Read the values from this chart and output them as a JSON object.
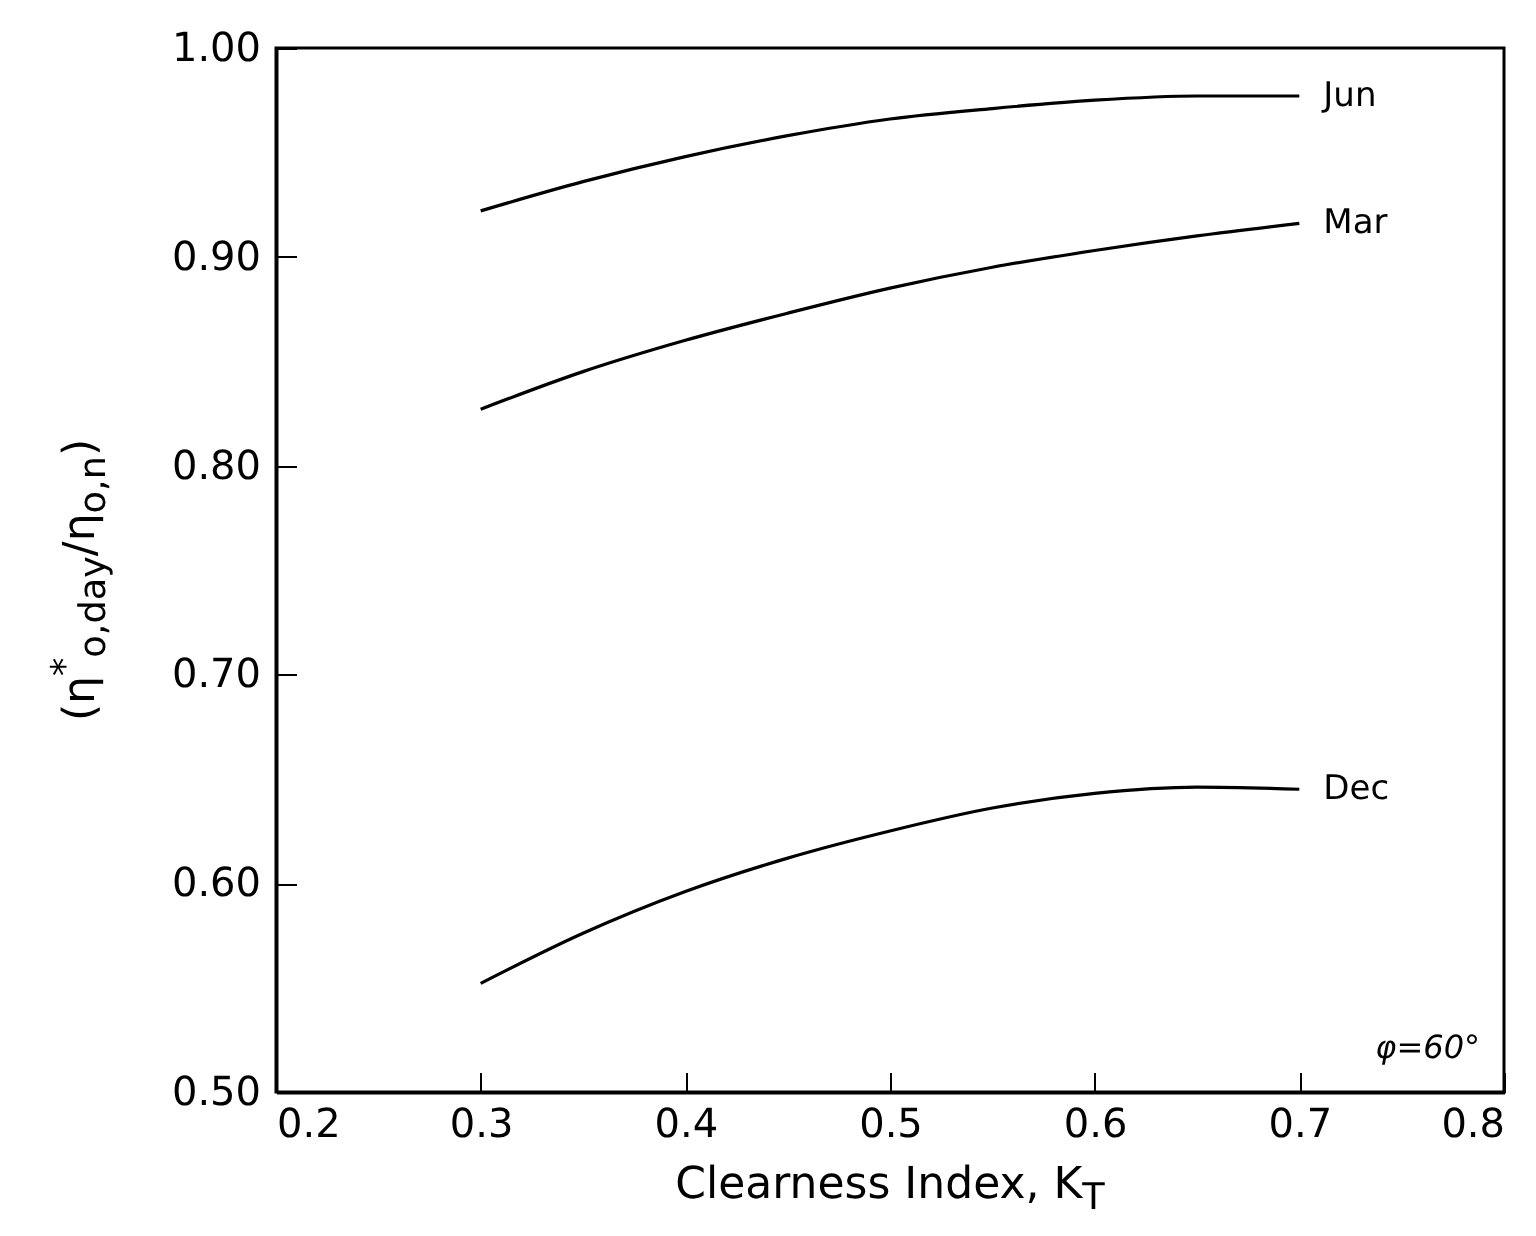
{
  "chart_data": {
    "type": "line",
    "xlabel": "Clearness Index, K$_{T}$",
    "ylabel": "(η$^{*}$$_{o,day}$/η$_{o,n}$)",
    "x": [
      0.3,
      0.35,
      0.4,
      0.45,
      0.5,
      0.55,
      0.6,
      0.65,
      0.7
    ],
    "series": [
      {
        "name": "Jun",
        "color": "#000000",
        "values": [
          0.922,
          0.936,
          0.948,
          0.958,
          0.966,
          0.971,
          0.975,
          0.977,
          0.977
        ]
      },
      {
        "name": "Mar",
        "color": "#000000",
        "values": [
          0.827,
          0.845,
          0.86,
          0.873,
          0.885,
          0.895,
          0.903,
          0.91,
          0.916
        ]
      },
      {
        "name": "Dec",
        "color": "#000000",
        "values": [
          0.552,
          0.576,
          0.596,
          0.612,
          0.625,
          0.636,
          0.643,
          0.646,
          0.645
        ]
      }
    ],
    "xlim": [
      0.2,
      0.8
    ],
    "xticks": [
      0.2,
      0.3,
      0.4,
      0.5,
      0.6,
      0.7,
      0.8
    ],
    "ylim": [
      0.5,
      1.0
    ],
    "yticks": [
      {
        "value": 0.5,
        "label": "0.50"
      },
      {
        "value": 0.6,
        "label": "0.60"
      },
      {
        "value": 0.7,
        "label": "0.70"
      },
      {
        "value": 0.8,
        "label": "0.80"
      },
      {
        "value": 0.9,
        "label": "0.90"
      },
      {
        "value": 1.0,
        "label": "1.00"
      }
    ],
    "annotations": [
      "φ=60°"
    ],
    "grid": false,
    "legend": false,
    "marker": "none",
    "line_style": "solid"
  }
}
